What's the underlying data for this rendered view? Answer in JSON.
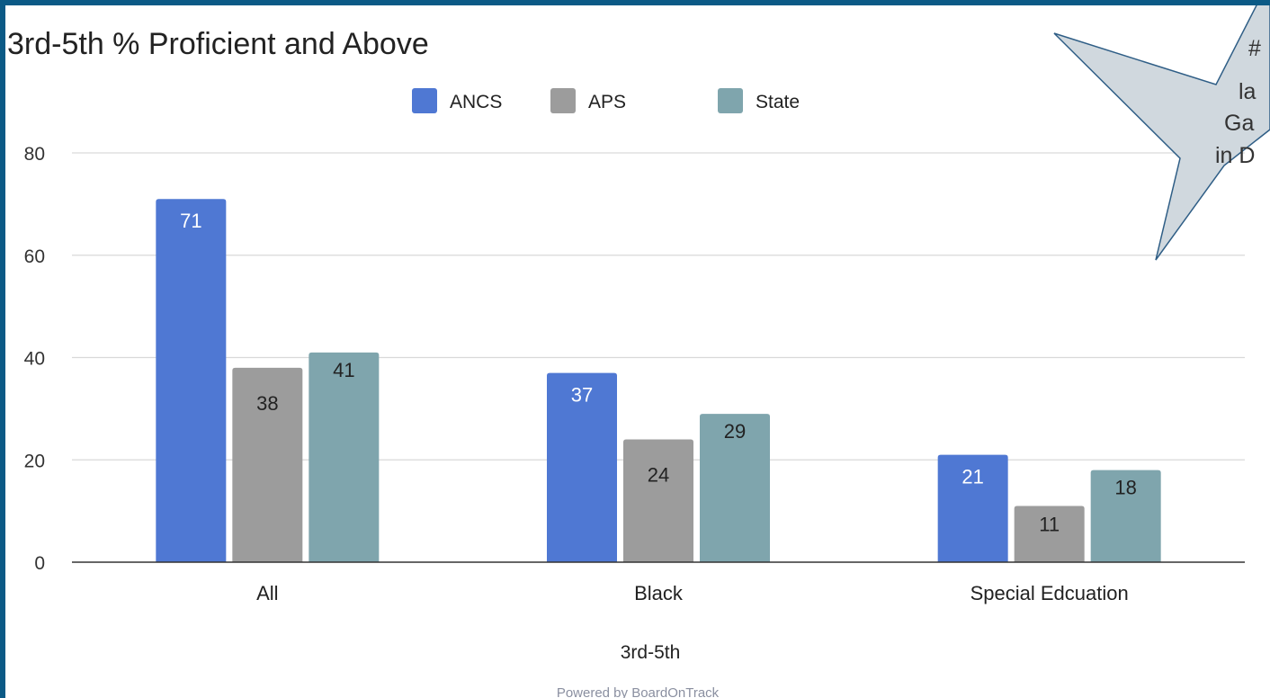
{
  "chart_data": {
    "type": "bar",
    "title": "3rd-5th % Proficient and Above",
    "xlabel": "3rd-5th",
    "ylabel": "",
    "ylim": [
      0,
      80
    ],
    "yticks": [
      0,
      20,
      40,
      60,
      80
    ],
    "grid": true,
    "legend_position": "top-center",
    "categories": [
      "All",
      "Black",
      "Special Edcuation"
    ],
    "series": [
      {
        "name": "ANCS",
        "color": "#4f78d3",
        "values": [
          71,
          37,
          21
        ]
      },
      {
        "name": "APS",
        "color": "#9c9c9c",
        "values": [
          38,
          24,
          11
        ]
      },
      {
        "name": "State",
        "color": "#7fa5ad",
        "values": [
          41,
          29,
          18
        ]
      }
    ]
  },
  "callout": {
    "lines": [
      "#",
      "la",
      "Ga",
      "in D"
    ],
    "fill": "#d0d8de",
    "stroke": "#2f5e86"
  },
  "footer": {
    "text": "Powered by BoardOnTrack"
  }
}
